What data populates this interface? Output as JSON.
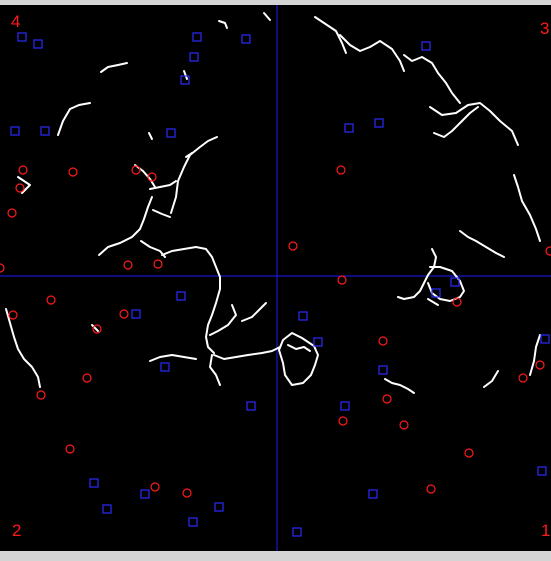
{
  "viewer": {
    "background": "#000000",
    "crosshair_color": "#1a1aff",
    "trace_color": "#ffffff",
    "circle_marker_color": "#ff1a1a",
    "square_marker_color": "#2a2aff",
    "quadrant_labels": {
      "q1": "1",
      "q2": "2",
      "q3": "3",
      "q4": "4"
    }
  }
}
